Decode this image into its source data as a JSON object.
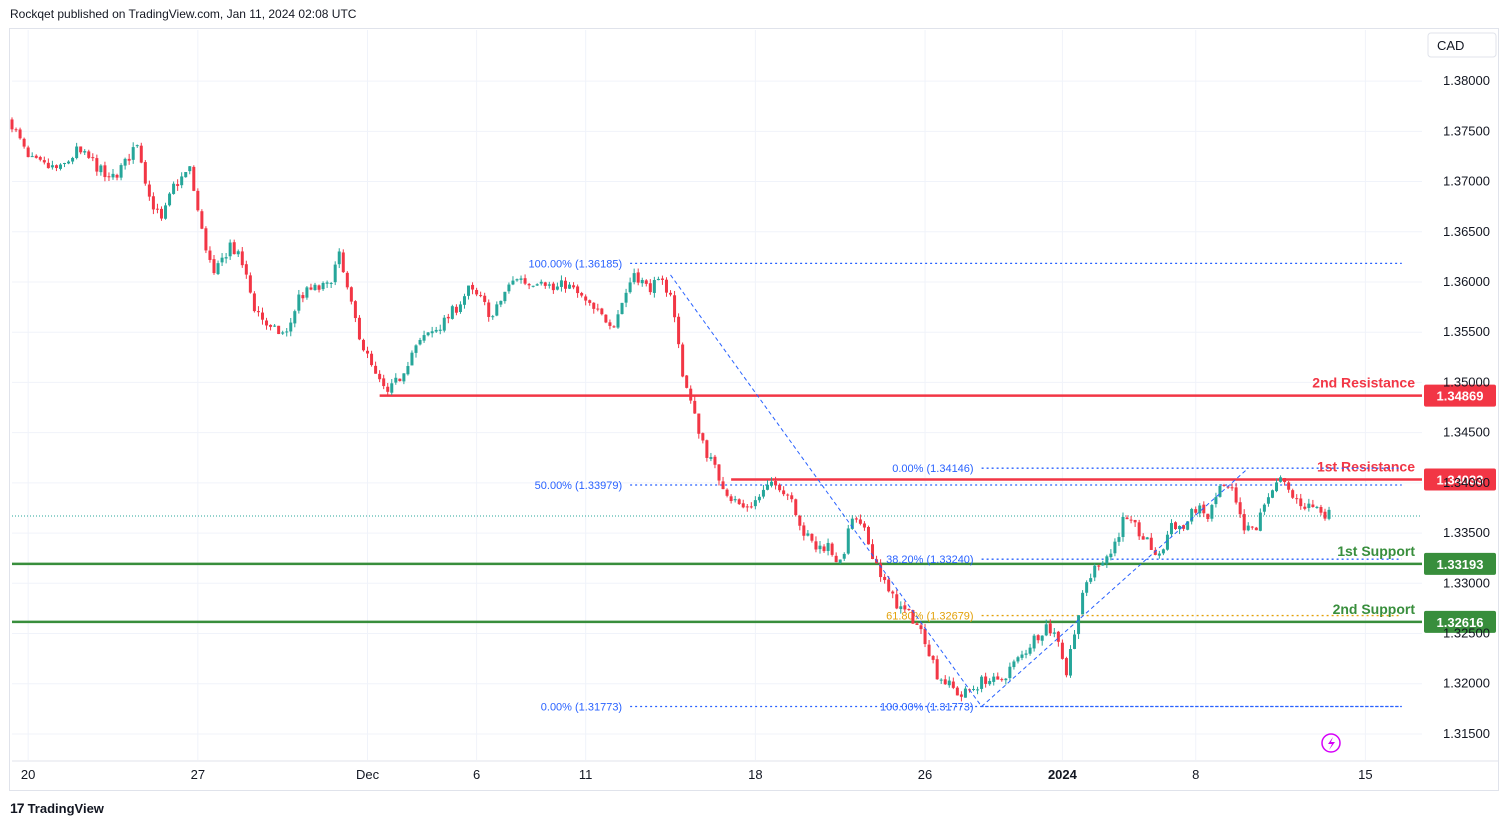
{
  "header": {
    "publisher_text": "Rockqet published on TradingView.com, Jan 11, 2024 02:08 UTC"
  },
  "footer": {
    "brand": "TradingView",
    "logo_text": "17"
  },
  "colors": {
    "bull": "#26a69a",
    "bear": "#f23645",
    "resistance": "#f23645",
    "support": "#388e3c",
    "fib": "#2962ff",
    "fib_gold": "#e3a20b",
    "grid": "#f0f3fa"
  },
  "chart_data": {
    "type": "candlestick",
    "symbol_quote": "CAD",
    "ylim": [
      1.3125,
      1.383
    ],
    "y_ticks": [
      "1.38000",
      "1.37500",
      "1.37000",
      "1.36500",
      "1.36000",
      "1.35500",
      "1.35000",
      "1.34500",
      "1.34000",
      "1.33500",
      "1.33000",
      "1.32500",
      "1.32000",
      "1.31500"
    ],
    "x_ticks": [
      {
        "label": "20",
        "bar": 4,
        "bold": false
      },
      {
        "label": "27",
        "bar": 46,
        "bold": false
      },
      {
        "label": "Dec",
        "bar": 88,
        "bold": false
      },
      {
        "label": "6",
        "bar": 115,
        "bold": false
      },
      {
        "label": "11",
        "bar": 142,
        "bold": false
      },
      {
        "label": "18",
        "bar": 184,
        "bold": false
      },
      {
        "label": "26",
        "bar": 226,
        "bold": false
      },
      {
        "label": "2024",
        "bar": 260,
        "bold": true
      },
      {
        "label": "8",
        "bar": 293,
        "bold": false
      },
      {
        "label": "15",
        "bar": 335,
        "bold": false
      }
    ],
    "levels": [
      {
        "name": "2nd Resistance",
        "value": 1.34869,
        "label": "1.34869",
        "color": "#f23645",
        "start_bar": 91
      },
      {
        "name": "1st Resistance",
        "value": 1.34033,
        "label": "1.34033",
        "color": "#f23645",
        "start_bar": 178
      },
      {
        "name": "1st Support",
        "value": 1.33193,
        "label": "1.33193",
        "color": "#388e3c",
        "start_bar": 0
      },
      {
        "name": "2nd Support",
        "value": 1.32616,
        "label": "1.32616",
        "color": "#388e3c",
        "start_bar": 0
      }
    ],
    "last_price": 1.3367,
    "fib_left": [
      {
        "label": "100.00% (1.36185)",
        "value": 1.36185,
        "color": "#2962ff"
      },
      {
        "label": "50.00% (1.33979)",
        "value": 1.33979,
        "color": "#2962ff"
      },
      {
        "label": "0.00% (1.31773)",
        "value": 1.31773,
        "color": "#2962ff"
      }
    ],
    "fib_right": [
      {
        "label": "0.00% (1.34146)",
        "value": 1.34146,
        "color": "#2962ff"
      },
      {
        "label": "38.20% (1.33240)",
        "value": 1.3324,
        "color": "#2962ff"
      },
      {
        "label": "61.80% (1.32679)",
        "value": 1.32679,
        "color": "#e3a20b"
      },
      {
        "label": "100.00% (1.31773)",
        "value": 1.31773,
        "color": "#2962ff"
      }
    ],
    "fib_left_bars": [
      153,
      344
    ],
    "fib_right_bars": [
      240,
      344
    ],
    "trend_lines": [
      {
        "from": [
          163,
          1.3607
        ],
        "to": [
          240,
          1.31773
        ]
      },
      {
        "from": [
          240,
          1.31773
        ],
        "to": [
          306,
          1.34146
        ]
      }
    ],
    "anchors": [
      {
        "bar": 0,
        "value": 1.3758
      },
      {
        "bar": 4,
        "value": 1.3722
      },
      {
        "bar": 8,
        "value": 1.3715
      },
      {
        "bar": 12,
        "value": 1.3712
      },
      {
        "bar": 16,
        "value": 1.373
      },
      {
        "bar": 20,
        "value": 1.372
      },
      {
        "bar": 24,
        "value": 1.37
      },
      {
        "bar": 28,
        "value": 1.3718
      },
      {
        "bar": 31,
        "value": 1.374
      },
      {
        "bar": 34,
        "value": 1.3685
      },
      {
        "bar": 37,
        "value": 1.366
      },
      {
        "bar": 40,
        "value": 1.3695
      },
      {
        "bar": 44,
        "value": 1.3712
      },
      {
        "bar": 47,
        "value": 1.365
      },
      {
        "bar": 50,
        "value": 1.3605
      },
      {
        "bar": 54,
        "value": 1.3638
      },
      {
        "bar": 57,
        "value": 1.3618
      },
      {
        "bar": 60,
        "value": 1.3575
      },
      {
        "bar": 64,
        "value": 1.3552
      },
      {
        "bar": 68,
        "value": 1.3548
      },
      {
        "bar": 71,
        "value": 1.3585
      },
      {
        "bar": 74,
        "value": 1.3592
      },
      {
        "bar": 78,
        "value": 1.3595
      },
      {
        "bar": 81,
        "value": 1.3625
      },
      {
        "bar": 84,
        "value": 1.3575
      },
      {
        "bar": 87,
        "value": 1.3535
      },
      {
        "bar": 90,
        "value": 1.3505
      },
      {
        "bar": 93,
        "value": 1.3488
      },
      {
        "bar": 96,
        "value": 1.3505
      },
      {
        "bar": 99,
        "value": 1.353
      },
      {
        "bar": 103,
        "value": 1.3548
      },
      {
        "bar": 107,
        "value": 1.356
      },
      {
        "bar": 110,
        "value": 1.3575
      },
      {
        "bar": 113,
        "value": 1.3592
      },
      {
        "bar": 116,
        "value": 1.3582
      },
      {
        "bar": 119,
        "value": 1.3565
      },
      {
        "bar": 122,
        "value": 1.359
      },
      {
        "bar": 125,
        "value": 1.3605
      },
      {
        "bar": 128,
        "value": 1.3598
      },
      {
        "bar": 131,
        "value": 1.3605
      },
      {
        "bar": 134,
        "value": 1.3592
      },
      {
        "bar": 137,
        "value": 1.3598
      },
      {
        "bar": 140,
        "value": 1.3588
      },
      {
        "bar": 143,
        "value": 1.3575
      },
      {
        "bar": 146,
        "value": 1.3565
      },
      {
        "bar": 149,
        "value": 1.356
      },
      {
        "bar": 152,
        "value": 1.359
      },
      {
        "bar": 154,
        "value": 1.361
      },
      {
        "bar": 157,
        "value": 1.3595
      },
      {
        "bar": 161,
        "value": 1.3598
      },
      {
        "bar": 163,
        "value": 1.359
      },
      {
        "bar": 166,
        "value": 1.351
      },
      {
        "bar": 169,
        "value": 1.3465
      },
      {
        "bar": 172,
        "value": 1.343
      },
      {
        "bar": 175,
        "value": 1.3405
      },
      {
        "bar": 178,
        "value": 1.3385
      },
      {
        "bar": 181,
        "value": 1.3375
      },
      {
        "bar": 184,
        "value": 1.3382
      },
      {
        "bar": 187,
        "value": 1.3395
      },
      {
        "bar": 190,
        "value": 1.3398
      },
      {
        "bar": 193,
        "value": 1.3385
      },
      {
        "bar": 196,
        "value": 1.335
      },
      {
        "bar": 199,
        "value": 1.3335
      },
      {
        "bar": 202,
        "value": 1.3338
      },
      {
        "bar": 205,
        "value": 1.3318
      },
      {
        "bar": 208,
        "value": 1.3365
      },
      {
        "bar": 211,
        "value": 1.335
      },
      {
        "bar": 214,
        "value": 1.332
      },
      {
        "bar": 217,
        "value": 1.329
      },
      {
        "bar": 220,
        "value": 1.3275
      },
      {
        "bar": 223,
        "value": 1.3265
      },
      {
        "bar": 226,
        "value": 1.3245
      },
      {
        "bar": 229,
        "value": 1.321
      },
      {
        "bar": 232,
        "value": 1.3198
      },
      {
        "bar": 235,
        "value": 1.3188
      },
      {
        "bar": 238,
        "value": 1.3196
      },
      {
        "bar": 241,
        "value": 1.3205
      },
      {
        "bar": 244,
        "value": 1.32
      },
      {
        "bar": 247,
        "value": 1.3215
      },
      {
        "bar": 250,
        "value": 1.3228
      },
      {
        "bar": 253,
        "value": 1.3245
      },
      {
        "bar": 256,
        "value": 1.3258
      },
      {
        "bar": 259,
        "value": 1.3245
      },
      {
        "bar": 261,
        "value": 1.321
      },
      {
        "bar": 263,
        "value": 1.3255
      },
      {
        "bar": 266,
        "value": 1.33
      },
      {
        "bar": 269,
        "value": 1.3322
      },
      {
        "bar": 272,
        "value": 1.333
      },
      {
        "bar": 275,
        "value": 1.3362
      },
      {
        "bar": 278,
        "value": 1.3355
      },
      {
        "bar": 281,
        "value": 1.334
      },
      {
        "bar": 284,
        "value": 1.3325
      },
      {
        "bar": 287,
        "value": 1.336
      },
      {
        "bar": 290,
        "value": 1.3355
      },
      {
        "bar": 293,
        "value": 1.3375
      },
      {
        "bar": 296,
        "value": 1.3365
      },
      {
        "bar": 299,
        "value": 1.3395
      },
      {
        "bar": 302,
        "value": 1.339
      },
      {
        "bar": 305,
        "value": 1.3352
      },
      {
        "bar": 308,
        "value": 1.3355
      },
      {
        "bar": 311,
        "value": 1.339
      },
      {
        "bar": 314,
        "value": 1.3402
      },
      {
        "bar": 317,
        "value": 1.3385
      },
      {
        "bar": 320,
        "value": 1.3378
      },
      {
        "bar": 323,
        "value": 1.3375
      },
      {
        "bar": 326,
        "value": 1.3368
      }
    ]
  }
}
